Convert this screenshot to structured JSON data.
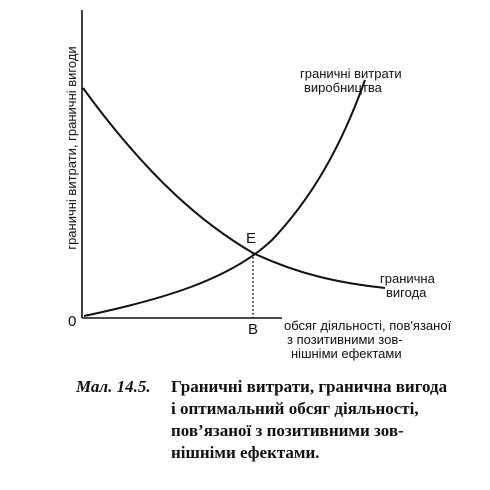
{
  "diagram": {
    "y_axis_label": "граничні витрати, граничні вигоди",
    "origin_label": "0",
    "x_axis_label": [
      "обсяг діяльності, пов'язаної",
      "з позитивними зов-",
      "нішніми ефектами"
    ],
    "cost_curve_label": [
      "граничні витрати",
      "виробництва"
    ],
    "benefit_curve_label": [
      "гранична",
      "вигода"
    ],
    "point_e_label": "E",
    "point_b_label": "B",
    "ink_color": "#111111"
  },
  "caption": {
    "prefix": "Мал. 14.5.",
    "lines": [
      "Граничні витрати, гранична вигода",
      "і оптимальний обсяг діяльності,",
      "пов’язаної з позитивними зов-",
      "нішніми ефектами."
    ]
  }
}
